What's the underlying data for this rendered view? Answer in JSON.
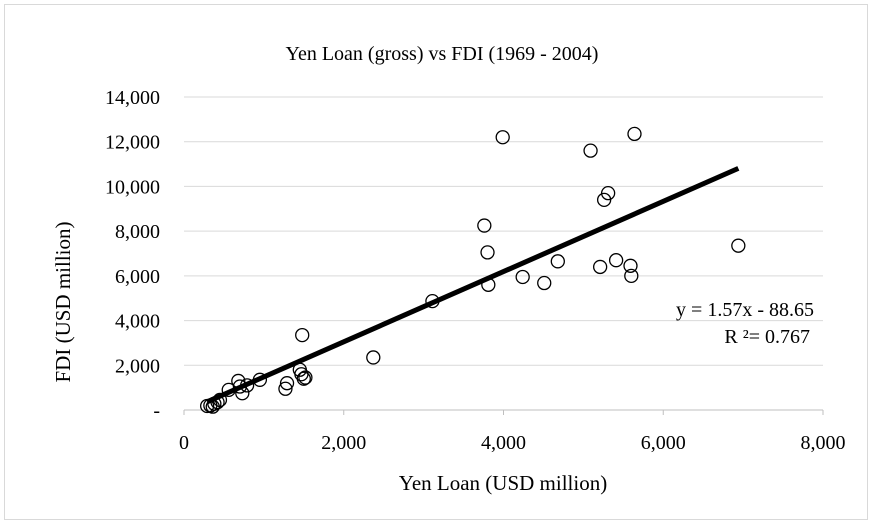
{
  "chart_data": {
    "type": "scatter",
    "title": "Yen Loan (gross) vs FDI (1969 - 2004)",
    "xlabel": "Yen Loan (USD million)",
    "ylabel": "FDI (USD million)",
    "xlim": [
      0,
      8000
    ],
    "ylim": [
      0,
      14000
    ],
    "grid": "horizontal",
    "xticks": [
      0,
      2000,
      4000,
      6000,
      8000
    ],
    "xtick_labels": [
      "0",
      "2,000",
      "4,000",
      "6,000",
      "8,000"
    ],
    "yticks": [
      0,
      2000,
      4000,
      6000,
      8000,
      10000,
      12000,
      14000
    ],
    "ytick_labels": [
      "-",
      "2,000",
      "4,000",
      "6,000",
      "8,000",
      "10,000",
      "12,000",
      "14,000"
    ],
    "points": [
      {
        "x": 290,
        "y": 180
      },
      {
        "x": 330,
        "y": 200
      },
      {
        "x": 360,
        "y": 150
      },
      {
        "x": 380,
        "y": 280
      },
      {
        "x": 420,
        "y": 350
      },
      {
        "x": 450,
        "y": 450
      },
      {
        "x": 560,
        "y": 900
      },
      {
        "x": 680,
        "y": 1300
      },
      {
        "x": 700,
        "y": 1050
      },
      {
        "x": 730,
        "y": 750
      },
      {
        "x": 790,
        "y": 1100
      },
      {
        "x": 950,
        "y": 1350
      },
      {
        "x": 1270,
        "y": 950
      },
      {
        "x": 1290,
        "y": 1200
      },
      {
        "x": 1450,
        "y": 1800
      },
      {
        "x": 1470,
        "y": 1600
      },
      {
        "x": 1480,
        "y": 3350
      },
      {
        "x": 1500,
        "y": 1400
      },
      {
        "x": 1520,
        "y": 1450
      },
      {
        "x": 2370,
        "y": 2350
      },
      {
        "x": 3110,
        "y": 4870
      },
      {
        "x": 3760,
        "y": 8250
      },
      {
        "x": 3800,
        "y": 7050
      },
      {
        "x": 3810,
        "y": 5600
      },
      {
        "x": 3990,
        "y": 12200
      },
      {
        "x": 4240,
        "y": 5950
      },
      {
        "x": 4510,
        "y": 5680
      },
      {
        "x": 4680,
        "y": 6650
      },
      {
        "x": 5090,
        "y": 11600
      },
      {
        "x": 5210,
        "y": 6400
      },
      {
        "x": 5260,
        "y": 9400
      },
      {
        "x": 5310,
        "y": 9700
      },
      {
        "x": 5410,
        "y": 6700
      },
      {
        "x": 5590,
        "y": 6450
      },
      {
        "x": 5600,
        "y": 6000
      },
      {
        "x": 5640,
        "y": 12350
      },
      {
        "x": 6940,
        "y": 7350
      }
    ],
    "trendline": {
      "slope": 1.57,
      "intercept": -88.65,
      "x_range": [
        290,
        6940
      ],
      "equation_label": "y = 1.57x - 88.65",
      "r2_label": "R ²= 0.767"
    }
  }
}
